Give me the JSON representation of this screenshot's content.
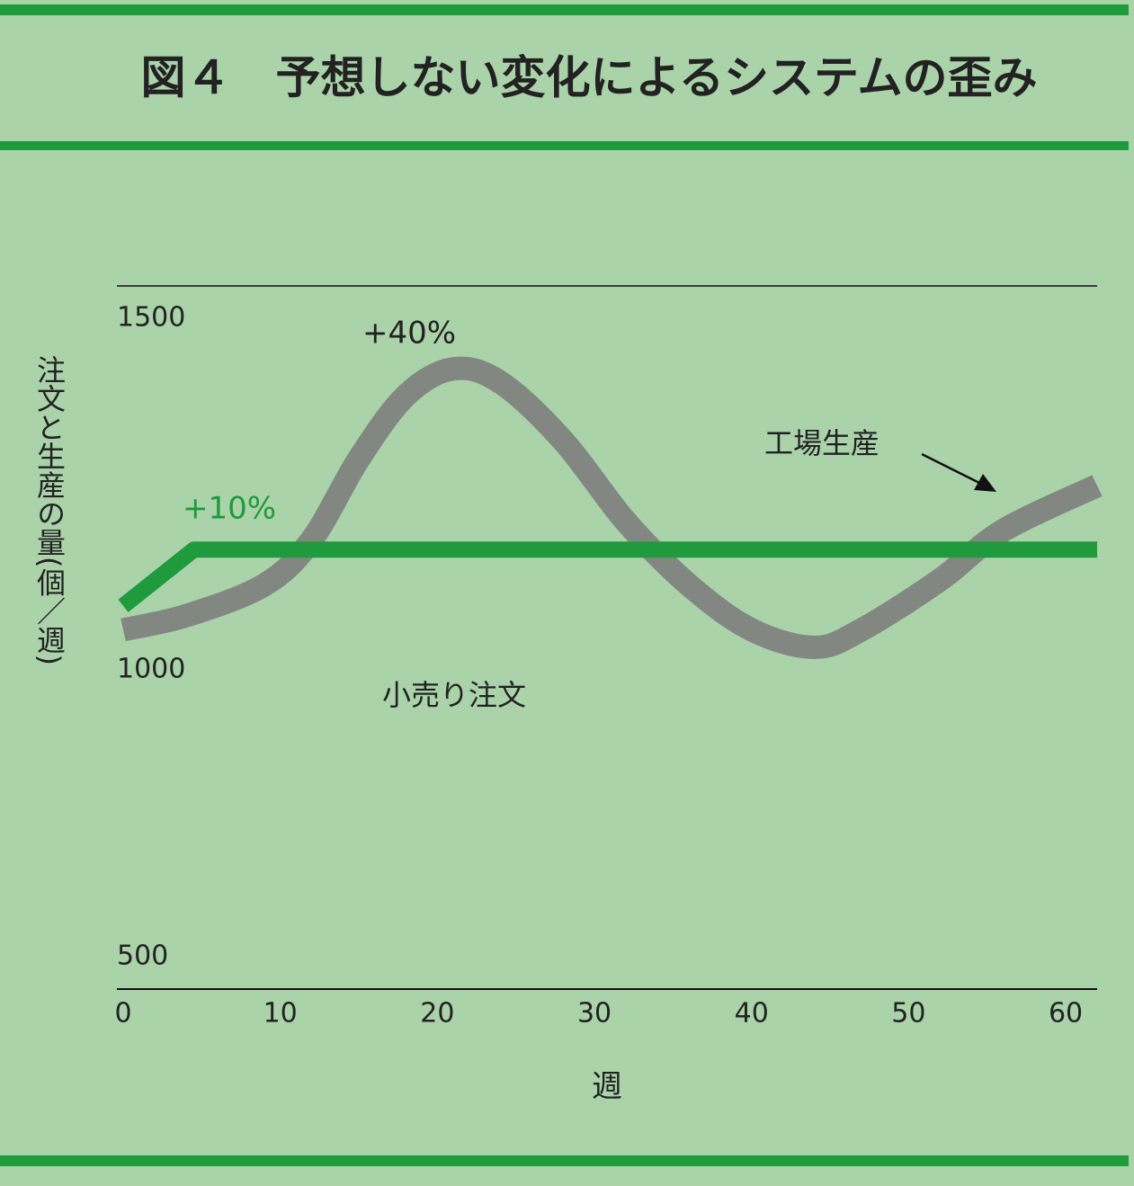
{
  "chart_data": {
    "type": "line",
    "title": "図４　予想しない変化によるシステムの歪み",
    "x_label": "週",
    "y_label": "注文と生産の量(個／週)",
    "x": [],
    "series": [
      {
        "name": "工場生産",
        "color": "#7a7a7a",
        "x": [
          0,
          4,
          9,
          12,
          15,
          18,
          21,
          24,
          28,
          32,
          36,
          40,
          44,
          47,
          52,
          56,
          62
        ],
        "values": [
          1011,
          1031,
          1075,
          1139,
          1254,
          1344,
          1382,
          1363,
          1280,
          1165,
          1075,
          1011,
          986,
          1011,
          1082,
          1152,
          1216
        ]
      },
      {
        "name": "小売り注文",
        "color": "#1f9a3c",
        "x": [
          0,
          4.5,
          62
        ],
        "values": [
          1045,
          1125,
          1125
        ]
      }
    ],
    "annotations": [
      {
        "text": "+40%",
        "series": 0
      },
      {
        "text": "+10%",
        "series": 1
      }
    ],
    "xlim": [
      0,
      62
    ],
    "xticks": [
      0,
      10,
      20,
      30,
      40,
      50,
      60
    ],
    "ylim": [
      500,
      1500
    ],
    "yticks": [
      500,
      1000,
      1500
    ],
    "grid": false
  }
}
